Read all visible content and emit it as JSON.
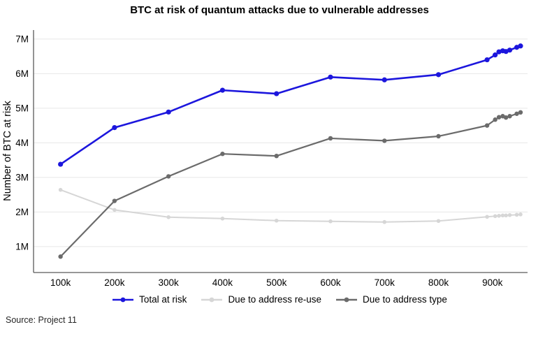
{
  "figure": {
    "title": "BTC at risk of quantum attacks due to vulnerable addresses",
    "y_axis_label": "Number of BTC at risk",
    "source": "Source: Project 11"
  },
  "chart_data": {
    "type": "line",
    "title": "BTC at risk of quantum attacks due to vulnerable addresses",
    "xlabel": "",
    "ylabel": "Number of BTC at risk",
    "x_unit": "thousands",
    "y_unit": "millions of BTC",
    "x": [
      100,
      200,
      300,
      400,
      500,
      600,
      700,
      800,
      890,
      905,
      912,
      919,
      925,
      932,
      945,
      952
    ],
    "series": [
      {
        "name": "Total at risk",
        "color": "#1c16dd",
        "line_width": 2.6,
        "marker_radius": 3.6,
        "values": [
          3.38,
          4.44,
          4.89,
          5.52,
          5.42,
          5.9,
          5.82,
          5.97,
          6.4,
          6.54,
          6.63,
          6.66,
          6.64,
          6.68,
          6.76,
          6.8
        ]
      },
      {
        "name": "Due to address re-use",
        "color": "#d6d6d6",
        "line_width": 2.0,
        "marker_radius": 2.8,
        "values": [
          2.64,
          2.06,
          1.85,
          1.81,
          1.75,
          1.73,
          1.71,
          1.74,
          1.86,
          1.88,
          1.89,
          1.9,
          1.9,
          1.91,
          1.92,
          1.93
        ]
      },
      {
        "name": "Due to address type",
        "color": "#6b6b6b",
        "line_width": 2.2,
        "marker_radius": 3.2,
        "values": [
          0.71,
          2.32,
          3.03,
          3.68,
          3.62,
          4.13,
          4.06,
          4.19,
          4.5,
          4.67,
          4.74,
          4.77,
          4.73,
          4.77,
          4.84,
          4.88
        ]
      }
    ],
    "draw_order": [
      1,
      2,
      0
    ],
    "x_ticks": {
      "values": [
        100,
        200,
        300,
        400,
        500,
        600,
        700,
        800,
        900
      ],
      "labels": [
        "100k",
        "200k",
        "300k",
        "400k",
        "500k",
        "600k",
        "700k",
        "800k",
        "900k"
      ]
    },
    "y_ticks": {
      "values": [
        1,
        2,
        3,
        4,
        5,
        6,
        7
      ],
      "labels": [
        "1M",
        "2M",
        "3M",
        "4M",
        "5M",
        "6M",
        "7M"
      ]
    },
    "xlim": [
      50,
      965
    ],
    "ylim": [
      0.25,
      7.26
    ],
    "grid": "horizontal",
    "gridline_color": "#e7e7e7",
    "axis_line_color": "#5a5a5a",
    "legend_position": "bottom"
  }
}
